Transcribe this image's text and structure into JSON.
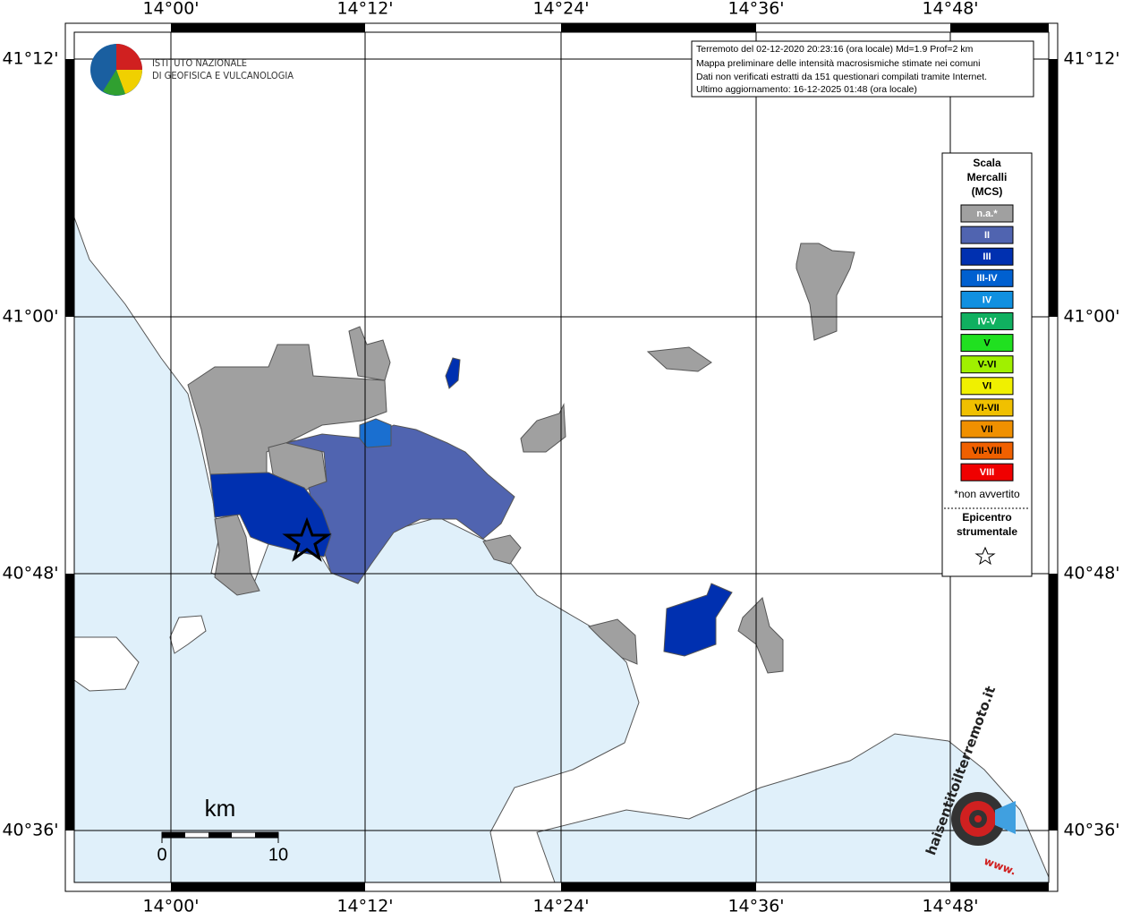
{
  "lon_labels": [
    "14°00'",
    "14°12'",
    "14°24'",
    "14°36'",
    "14°48'"
  ],
  "lat_labels": [
    "41°12'",
    "41°00'",
    "40°48'",
    "40°36'"
  ],
  "logo": {
    "line1": "ISTITUTO NAZIONALE",
    "line2": "DI GEOFISICA E VULCANOLOGIA"
  },
  "info": [
    "Terremoto del 02-12-2020 20:23:16 (ora locale) Md=1.9 Prof=2 km",
    "Mappa preliminare delle intensità macrosismiche stimate nei comuni",
    "Dati non verificati estratti da 151 questionari compilati tramite Internet.",
    "Ultimo aggiornamento: 16-12-2025 01:48 (ora locale)"
  ],
  "legend": {
    "title": [
      "Scala",
      "Mercalli",
      "(MCS)"
    ],
    "items": [
      {
        "label": "n.a.*",
        "color": "#a0a0a0"
      },
      {
        "label": "II",
        "color": "#5064b0"
      },
      {
        "label": "III",
        "color": "#0030b0"
      },
      {
        "label": "III-IV",
        "color": "#0060d0"
      },
      {
        "label": "IV",
        "color": "#1090e0"
      },
      {
        "label": "IV-V",
        "color": "#10b060"
      },
      {
        "label": "V",
        "color": "#20e020"
      },
      {
        "label": "V-VI",
        "color": "#a0f000"
      },
      {
        "label": "VI",
        "color": "#f0f000"
      },
      {
        "label": "VI-VII",
        "color": "#f0c000"
      },
      {
        "label": "VII",
        "color": "#f09000"
      },
      {
        "label": "VII-VIII",
        "color": "#f06000"
      },
      {
        "label": "VIII",
        "color": "#f00000"
      }
    ],
    "note": "*non avvertito",
    "epicenter": [
      "Epicentro",
      "strumentale"
    ]
  },
  "scale": {
    "unit": "km",
    "start": "0",
    "end": "10"
  },
  "badge": {
    "site": "haisentitoilterremoto.it",
    "prefix": "www."
  }
}
